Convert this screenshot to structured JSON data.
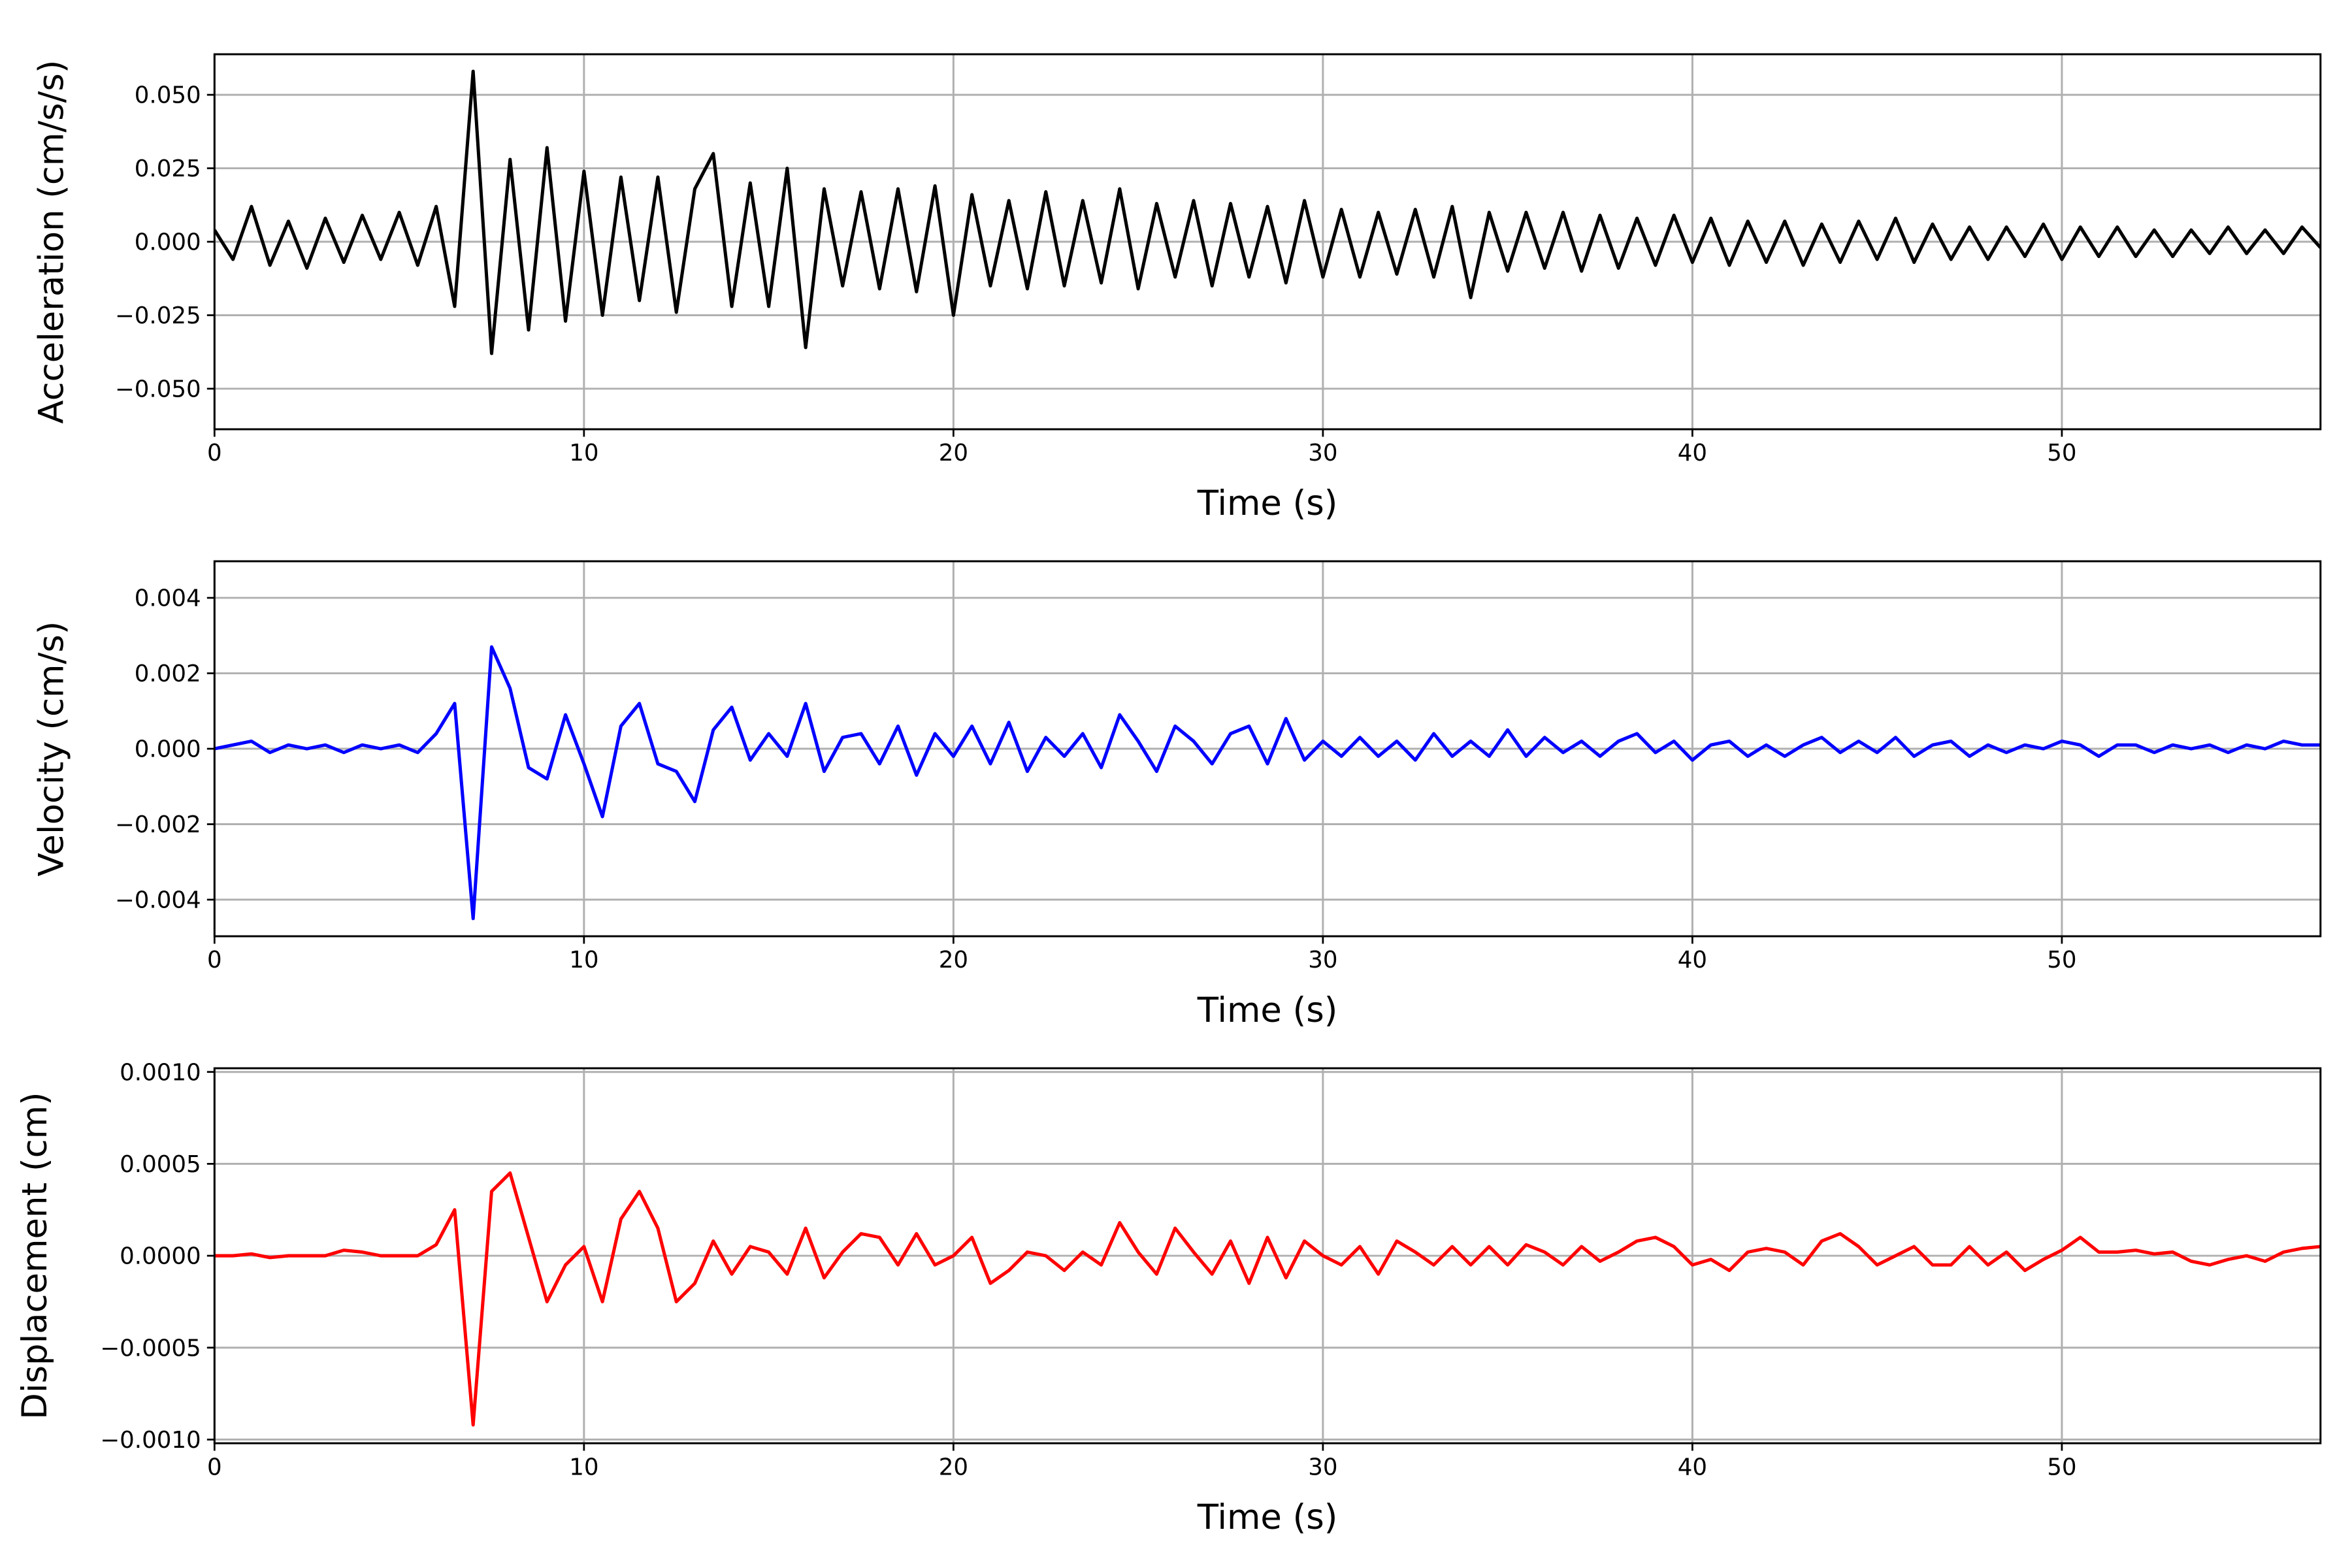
{
  "chart_data": [
    {
      "type": "line",
      "x_label": "Time (s)",
      "y_label": "Acceleration (cm/s/s)",
      "color": "#000000",
      "grid": true,
      "xlim": [
        0,
        57
      ],
      "xticks": [
        0,
        10,
        20,
        30,
        40,
        50
      ],
      "ylim": [
        -0.0638,
        0.0638
      ],
      "yticks": [
        {
          "value": -0.05,
          "label": "−0.050"
        },
        {
          "value": -0.025,
          "label": "−0.025"
        },
        {
          "value": 0,
          "label": "0.000"
        },
        {
          "value": 0.025,
          "label": "0.025"
        },
        {
          "value": 0.05,
          "label": "0.050"
        }
      ],
      "x": [
        0,
        0.5,
        1,
        1.5,
        2,
        2.5,
        3,
        3.5,
        4,
        4.5,
        5,
        5.5,
        6,
        6.5,
        7,
        7.5,
        8,
        8.5,
        9,
        9.5,
        10,
        10.5,
        11,
        11.5,
        12,
        12.5,
        13,
        13.5,
        14,
        14.5,
        15,
        15.5,
        16,
        16.5,
        17,
        17.5,
        18,
        18.5,
        19,
        19.5,
        20,
        20.5,
        21,
        21.5,
        22,
        22.5,
        23,
        23.5,
        24,
        24.5,
        25,
        25.5,
        26,
        26.5,
        27,
        27.5,
        28,
        28.5,
        29,
        29.5,
        30,
        30.5,
        31,
        31.5,
        32,
        32.5,
        33,
        33.5,
        34,
        34.5,
        35,
        35.5,
        36,
        36.5,
        37,
        37.5,
        38,
        38.5,
        39,
        39.5,
        40,
        40.5,
        41,
        41.5,
        42,
        42.5,
        43,
        43.5,
        44,
        44.5,
        45,
        45.5,
        46,
        46.5,
        47,
        47.5,
        48,
        48.5,
        49,
        49.5,
        50,
        50.5,
        51,
        51.5,
        52,
        52.5,
        53,
        53.5,
        54,
        54.5,
        55,
        55.5,
        56,
        56.5,
        57
      ],
      "values": [
        0.004,
        -0.006,
        0.012,
        -0.008,
        0.007,
        -0.009,
        0.008,
        -0.007,
        0.009,
        -0.006,
        0.01,
        -0.008,
        0.012,
        -0.022,
        0.058,
        -0.038,
        0.028,
        -0.03,
        0.032,
        -0.027,
        0.024,
        -0.025,
        0.022,
        -0.02,
        0.022,
        -0.024,
        0.018,
        0.03,
        -0.022,
        0.02,
        -0.022,
        0.025,
        -0.036,
        0.018,
        -0.015,
        0.017,
        -0.016,
        0.018,
        -0.017,
        0.019,
        -0.025,
        0.016,
        -0.015,
        0.014,
        -0.016,
        0.017,
        -0.015,
        0.014,
        -0.014,
        0.018,
        -0.016,
        0.013,
        -0.012,
        0.014,
        -0.015,
        0.013,
        -0.012,
        0.012,
        -0.014,
        0.014,
        -0.012,
        0.011,
        -0.012,
        0.01,
        -0.011,
        0.011,
        -0.012,
        0.012,
        -0.019,
        0.01,
        -0.01,
        0.01,
        -0.009,
        0.01,
        -0.01,
        0.009,
        -0.009,
        0.008,
        -0.008,
        0.009,
        -0.007,
        0.008,
        -0.008,
        0.007,
        -0.007,
        0.007,
        -0.008,
        0.006,
        -0.007,
        0.007,
        -0.006,
        0.008,
        -0.007,
        0.006,
        -0.006,
        0.005,
        -0.006,
        0.005,
        -0.005,
        0.006,
        -0.006,
        0.005,
        -0.005,
        0.005,
        -0.005,
        0.004,
        -0.005,
        0.004,
        -0.004,
        0.005,
        -0.004,
        0.004,
        -0.004,
        0.005,
        -0.002
      ]
    },
    {
      "type": "line",
      "x_label": "Time (s)",
      "y_label": "Velocity (cm/s)",
      "color": "#0000ff",
      "grid": true,
      "xlim": [
        0,
        57
      ],
      "xticks": [
        0,
        10,
        20,
        30,
        40,
        50
      ],
      "ylim": [
        -0.00497,
        0.00497
      ],
      "yticks": [
        {
          "value": -0.004,
          "label": "−0.004"
        },
        {
          "value": -0.002,
          "label": "−0.002"
        },
        {
          "value": 0,
          "label": "0.000"
        },
        {
          "value": 0.002,
          "label": "0.002"
        },
        {
          "value": 0.004,
          "label": "0.004"
        }
      ],
      "x": [
        0,
        0.5,
        1,
        1.5,
        2,
        2.5,
        3,
        3.5,
        4,
        4.5,
        5,
        5.5,
        6,
        6.5,
        7,
        7.5,
        8,
        8.5,
        9,
        9.5,
        10,
        10.5,
        11,
        11.5,
        12,
        12.5,
        13,
        13.5,
        14,
        14.5,
        15,
        15.5,
        16,
        16.5,
        17,
        17.5,
        18,
        18.5,
        19,
        19.5,
        20,
        20.5,
        21,
        21.5,
        22,
        22.5,
        23,
        23.5,
        24,
        24.5,
        25,
        25.5,
        26,
        26.5,
        27,
        27.5,
        28,
        28.5,
        29,
        29.5,
        30,
        30.5,
        31,
        31.5,
        32,
        32.5,
        33,
        33.5,
        34,
        34.5,
        35,
        35.5,
        36,
        36.5,
        37,
        37.5,
        38,
        38.5,
        39,
        39.5,
        40,
        40.5,
        41,
        41.5,
        42,
        42.5,
        43,
        43.5,
        44,
        44.5,
        45,
        45.5,
        46,
        46.5,
        47,
        47.5,
        48,
        48.5,
        49,
        49.5,
        50,
        50.5,
        51,
        51.5,
        52,
        52.5,
        53,
        53.5,
        54,
        54.5,
        55,
        55.5,
        56,
        56.5,
        57
      ],
      "values": [
        0,
        0.0001,
        0.0002,
        -0.0001,
        0.0001,
        0,
        0.0001,
        -0.0001,
        0.0001,
        0,
        0.0001,
        -0.0001,
        0.0004,
        0.0012,
        -0.0045,
        0.0027,
        0.0016,
        -0.0005,
        -0.0008,
        0.0009,
        -0.0004,
        -0.0018,
        0.0006,
        0.0012,
        -0.0004,
        -0.0006,
        -0.0014,
        0.0005,
        0.0011,
        -0.0003,
        0.0004,
        -0.0002,
        0.0012,
        -0.0006,
        0.0003,
        0.0004,
        -0.0004,
        0.0006,
        -0.0007,
        0.0004,
        -0.0002,
        0.0006,
        -0.0004,
        0.0007,
        -0.0006,
        0.0003,
        -0.0002,
        0.0004,
        -0.0005,
        0.0009,
        0.0002,
        -0.0006,
        0.0006,
        0.0002,
        -0.0004,
        0.0004,
        0.0006,
        -0.0004,
        0.0008,
        -0.0003,
        0.0002,
        -0.0002,
        0.0003,
        -0.0002,
        0.0002,
        -0.0003,
        0.0004,
        -0.0002,
        0.0002,
        -0.0002,
        0.0005,
        -0.0002,
        0.0003,
        -0.0001,
        0.0002,
        -0.0002,
        0.0002,
        0.0004,
        -0.0001,
        0.0002,
        -0.0003,
        0.0001,
        0.0002,
        -0.0002,
        0.0001,
        -0.0002,
        0.0001,
        0.0003,
        -0.0001,
        0.0002,
        -0.0001,
        0.0003,
        -0.0002,
        0.0001,
        0.0002,
        -0.0002,
        0.0001,
        -0.0001,
        0.0001,
        0,
        0.0002,
        0.0001,
        -0.0002,
        0.0001,
        0.0001,
        -0.0001,
        0.0001,
        0,
        0.0001,
        -0.0001,
        0.0001,
        0,
        0.0002,
        0.0001,
        0.0001
      ]
    },
    {
      "type": "line",
      "x_label": "Time (s)",
      "y_label": "Displacement (cm)",
      "color": "#ff0000",
      "grid": true,
      "xlim": [
        0,
        57
      ],
      "xticks": [
        0,
        10,
        20,
        30,
        40,
        50
      ],
      "ylim": [
        -0.00102,
        0.00102
      ],
      "yticks": [
        {
          "value": -0.001,
          "label": "−0.0010"
        },
        {
          "value": -0.0005,
          "label": "−0.0005"
        },
        {
          "value": 0,
          "label": "0.0000"
        },
        {
          "value": 0.0005,
          "label": "0.0005"
        },
        {
          "value": 0.001,
          "label": "0.0010"
        }
      ],
      "x": [
        0,
        0.5,
        1,
        1.5,
        2,
        2.5,
        3,
        3.5,
        4,
        4.5,
        5,
        5.5,
        6,
        6.5,
        7,
        7.5,
        8,
        8.5,
        9,
        9.5,
        10,
        10.5,
        11,
        11.5,
        12,
        12.5,
        13,
        13.5,
        14,
        14.5,
        15,
        15.5,
        16,
        16.5,
        17,
        17.5,
        18,
        18.5,
        19,
        19.5,
        20,
        20.5,
        21,
        21.5,
        22,
        22.5,
        23,
        23.5,
        24,
        24.5,
        25,
        25.5,
        26,
        26.5,
        27,
        27.5,
        28,
        28.5,
        29,
        29.5,
        30,
        30.5,
        31,
        31.5,
        32,
        32.5,
        33,
        33.5,
        34,
        34.5,
        35,
        35.5,
        36,
        36.5,
        37,
        37.5,
        38,
        38.5,
        39,
        39.5,
        40,
        40.5,
        41,
        41.5,
        42,
        42.5,
        43,
        43.5,
        44,
        44.5,
        45,
        45.5,
        46,
        46.5,
        47,
        47.5,
        48,
        48.5,
        49,
        49.5,
        50,
        50.5,
        51,
        51.5,
        52,
        52.5,
        53,
        53.5,
        54,
        54.5,
        55,
        55.5,
        56,
        56.5,
        57
      ],
      "values": [
        0,
        0,
        1e-05,
        -1e-05,
        0,
        0,
        0,
        3e-05,
        2e-05,
        0,
        0,
        0,
        6e-05,
        0.00025,
        -0.00092,
        0.00035,
        0.00045,
        0.0001,
        -0.00025,
        -5e-05,
        5e-05,
        -0.00025,
        0.0002,
        0.00035,
        0.00015,
        -0.00025,
        -0.00015,
        8e-05,
        -0.0001,
        5e-05,
        2e-05,
        -0.0001,
        0.00015,
        -0.00012,
        2e-05,
        0.00012,
        0.0001,
        -5e-05,
        0.00012,
        -5e-05,
        0,
        0.0001,
        -0.00015,
        -8e-05,
        2e-05,
        0,
        -8e-05,
        2e-05,
        -5e-05,
        0.00018,
        2e-05,
        -0.0001,
        0.00015,
        2e-05,
        -0.0001,
        8e-05,
        -0.00015,
        0.0001,
        -0.00012,
        8e-05,
        0,
        -5e-05,
        5e-05,
        -0.0001,
        8e-05,
        2e-05,
        -5e-05,
        5e-05,
        -5e-05,
        5e-05,
        -5e-05,
        6e-05,
        2e-05,
        -5e-05,
        5e-05,
        -3e-05,
        2e-05,
        8e-05,
        0.0001,
        5e-05,
        -5e-05,
        -2e-05,
        -8e-05,
        2e-05,
        4e-05,
        2e-05,
        -5e-05,
        8e-05,
        0.00012,
        5e-05,
        -5e-05,
        0,
        5e-05,
        -5e-05,
        -5e-05,
        5e-05,
        -5e-05,
        2e-05,
        -8e-05,
        -2e-05,
        3e-05,
        0.0001,
        2e-05,
        2e-05,
        3e-05,
        1e-05,
        2e-05,
        -3e-05,
        -5e-05,
        -2e-05,
        0,
        -3e-05,
        2e-05,
        4e-05,
        5e-05
      ]
    }
  ]
}
